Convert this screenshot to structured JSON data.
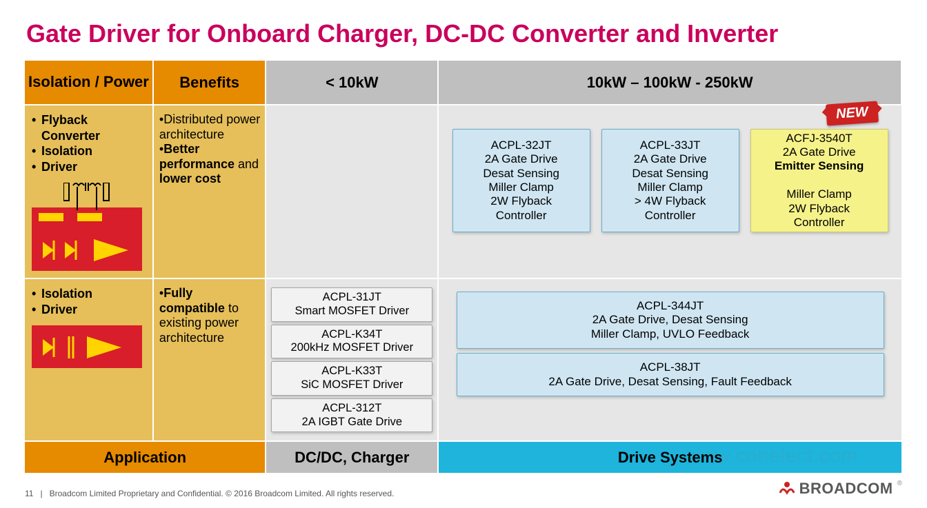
{
  "title": "Gate Driver for Onboard Charger, DC-DC Converter and Inverter",
  "title_color": "#c9005c",
  "headers": {
    "iso": "Isolation / Power",
    "benefits": "Benefits",
    "under10": "< 10kW",
    "wide": "10kW – 100kW - 250kW"
  },
  "row1": {
    "features": [
      "Flyback Converter",
      "Isolation",
      "Driver"
    ],
    "benefits_html": "•Distributed power architecture<br>•<b>Better performance</b> and <b>lower cost</b>",
    "cards": [
      {
        "bg": "blue",
        "lines": [
          "ACPL-32JT",
          "2A Gate Drive",
          "Desat Sensing",
          "Miller Clamp",
          "2W Flyback",
          "Controller"
        ]
      },
      {
        "bg": "blue",
        "lines": [
          "ACPL-33JT",
          "2A Gate Drive",
          "Desat Sensing",
          "Miller Clamp",
          "> 4W Flyback",
          "Controller"
        ]
      },
      {
        "bg": "yellow",
        "lines": [
          "ACFJ-3540T",
          "2A Gate Drive",
          "<b>Emitter Sensing</b>",
          "Miller Clamp",
          "2W Flyback",
          "Controller"
        ]
      }
    ],
    "new_label": "NEW"
  },
  "row2": {
    "features": [
      "Isolation",
      "Driver"
    ],
    "benefits_html": "•<b>Fully compatible</b> to existing power architecture",
    "mid_boxes": [
      [
        "ACPL-31JT",
        "Smart MOSFET Driver"
      ],
      [
        "ACPL-K34T",
        "200kHz MOSFET Driver"
      ],
      [
        "ACPL-K33T",
        "SiC MOSFET Driver"
      ],
      [
        "ACPL-312T",
        "2A IGBT Gate Drive"
      ]
    ],
    "right_boxes": [
      [
        "ACPL-344JT",
        "2A Gate Drive, Desat Sensing",
        "Miller Clamp, UVLO Feedback"
      ],
      [
        "ACPL-38JT",
        "2A Gate Drive, Desat  Sensing, Fault Feedback"
      ]
    ]
  },
  "footer_row": {
    "app": "Application",
    "dc": "DC/DC, Charger",
    "drive": "Drive Systems"
  },
  "page_footer": {
    "num": "11",
    "text": "Broadcom Limited Proprietary and Confidential.  © 2016 Broadcom Limited.  All rights reserved."
  },
  "logo_text": "BROADCOM",
  "colors": {
    "orange": "#e68a00",
    "gold": "#e6bf5a",
    "gray_hdr": "#bfbfbf",
    "gray_body": "#e6e6e6",
    "blue_card": "#cfe6f2",
    "blue_border": "#6aacc9",
    "yellow_card": "#f5f28a",
    "cyan": "#1eb4dc",
    "red": "#d81e2a",
    "title": "#c9005c"
  },
  "watermark": "www.conelect.com"
}
